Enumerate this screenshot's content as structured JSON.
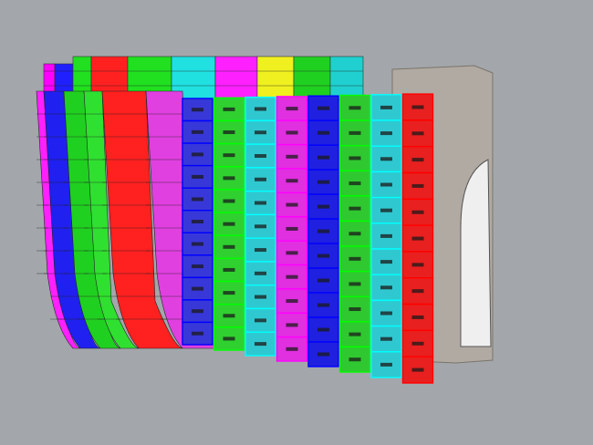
{
  "viewport": {
    "background": "#a3a7ab",
    "back_row_colors": [
      "#ff00ff",
      "#2020ff",
      "#20e020",
      "#ff2020",
      "#20e020",
      "#20e0e0",
      "#ff20ff",
      "#f0f020",
      "#20d020",
      "#20d0d0"
    ],
    "side_strip_colors": [
      "#ff20ff",
      "#2020f0",
      "#20d020",
      "#30e030",
      "#ff2020",
      "#e040e0"
    ],
    "front_column_colors": [
      "#3838d8",
      "#30d030",
      "#30c8d0",
      "#e030e0",
      "#2020e0",
      "#30c830",
      "#30c8d0",
      "#e82020"
    ],
    "front_column_borders": [
      "#0000ff",
      "#00ff00",
      "#00ffff",
      "#ff00ff",
      "#0000ff",
      "#00ff00",
      "#00ffff",
      "#ff0000"
    ],
    "structure_color": "#b0aaa2"
  }
}
